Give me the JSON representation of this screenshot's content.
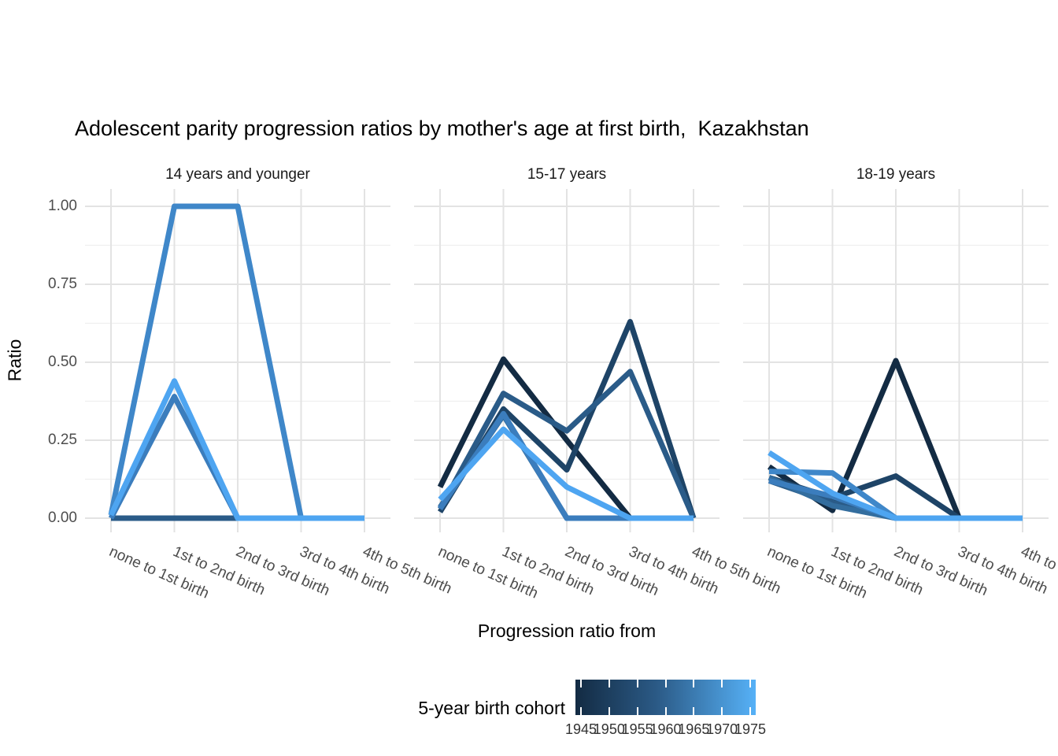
{
  "chart_data": {
    "type": "line",
    "title": "Adolescent parity progression ratios by mother's age at first birth,  Kazakhstan",
    "xlabel": "Progression ratio from",
    "ylabel": "Ratio",
    "ylim": [
      0,
      1
    ],
    "grid": {
      "major_values": [
        0,
        0.25,
        0.5,
        0.75,
        1.0
      ],
      "minor_values": [
        0.125,
        0.375,
        0.625,
        0.875
      ],
      "major_color": "#e3e3e3",
      "minor_color": "#efefef"
    },
    "yticks": [
      {
        "value": 1.0,
        "label": "1.00"
      },
      {
        "value": 0.75,
        "label": "0.75"
      },
      {
        "value": 0.5,
        "label": "0.50"
      },
      {
        "value": 0.25,
        "label": "0.25"
      },
      {
        "value": 0.0,
        "label": "0.00"
      }
    ],
    "categories": [
      "none to 1st birth",
      "1st to 2nd birth",
      "2nd to 3rd birth",
      "3rd to 4th birth",
      "4th to 5th birth"
    ],
    "cohort_colors": {
      "1945": "#132B43",
      "1950": "#1E4467",
      "1955": "#2A5B88",
      "1960": "#336D9E",
      "1965": "#3B7DBD",
      "1970": "#3F87C9",
      "1975": "#4EA5F1"
    },
    "facets": [
      {
        "label": "14 years and younger",
        "series": [
          {
            "cohort": "1955",
            "values": [
              0.0,
              0.0,
              0.0,
              0.0,
              0.0
            ]
          },
          {
            "cohort": "1965",
            "values": [
              0.0,
              0.39,
              0.0,
              0.0,
              0.0
            ]
          },
          {
            "cohort": "1970",
            "values": [
              0.01,
              1.0,
              1.0,
              0.0,
              0.0
            ]
          },
          {
            "cohort": "1975",
            "values": [
              0.01,
              0.44,
              0.0,
              0.0,
              0.0
            ]
          }
        ]
      },
      {
        "label": "15-17 years",
        "series": [
          {
            "cohort": "1945",
            "values": [
              0.1,
              0.51,
              0.25,
              0.0,
              0.0
            ]
          },
          {
            "cohort": "1950",
            "values": [
              0.02,
              0.35,
              0.155,
              0.63,
              0.0
            ]
          },
          {
            "cohort": "1955",
            "values": [
              0.03,
              0.4,
              0.28,
              0.47,
              0.0
            ]
          },
          {
            "cohort": "1960",
            "values": [
              0.035,
              0.33,
              0.0,
              0.0,
              0.0
            ]
          },
          {
            "cohort": "1965",
            "values": [
              0.03,
              0.335,
              0.0,
              0.0,
              0.0
            ]
          },
          {
            "cohort": "1975",
            "values": [
              0.06,
              0.285,
              0.1,
              0.0,
              0.0
            ]
          }
        ]
      },
      {
        "label": "18-19 years",
        "series": [
          {
            "cohort": "1945",
            "values": [
              0.165,
              0.025,
              0.505,
              0.0,
              0.0
            ]
          },
          {
            "cohort": "1950",
            "values": [
              0.13,
              0.065,
              0.135,
              0.0,
              0.0
            ]
          },
          {
            "cohort": "1955",
            "values": [
              0.12,
              0.05,
              0.0,
              0.0,
              0.0
            ]
          },
          {
            "cohort": "1960",
            "values": [
              0.13,
              0.04,
              0.0,
              0.0,
              0.0
            ]
          },
          {
            "cohort": "1965",
            "values": [
              0.12,
              0.07,
              0.0,
              0.0,
              0.0
            ]
          },
          {
            "cohort": "1970",
            "values": [
              0.15,
              0.145,
              0.0,
              0.0,
              0.0
            ]
          },
          {
            "cohort": "1975",
            "values": [
              0.21,
              0.08,
              0.0,
              0.0,
              0.0
            ]
          }
        ]
      }
    ],
    "legend": {
      "title": "5-year birth cohort",
      "tick_labels": [
        "1945",
        "1950",
        "1955",
        "1960",
        "1965",
        "1970",
        "1975"
      ],
      "gradient_low": "#132B43",
      "gradient_mid": "#2B5A86",
      "gradient_high": "#56B1F7"
    }
  }
}
